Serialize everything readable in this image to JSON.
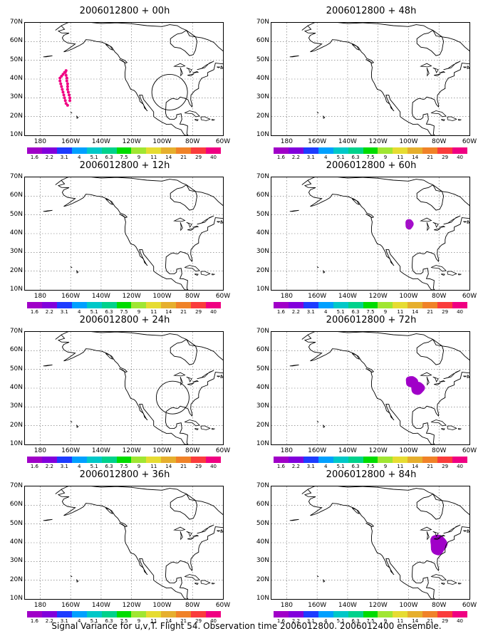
{
  "caption": "Signal Variance for u,v,T. Flight 54. Observation time 2006012800. 2006012400 ensemble.",
  "lat_labels": [
    "70N",
    "60N",
    "50N",
    "40N",
    "30N",
    "20N",
    "10N"
  ],
  "lon_labels": [
    "180",
    "160W",
    "140W",
    "120W",
    "100W",
    "80W",
    "60W"
  ],
  "colorbar": {
    "labels": [
      "1.6",
      "2.2",
      "3.1",
      "4",
      "5.1",
      "6.3",
      "7.5",
      "9",
      "11",
      "14",
      "21",
      "29",
      "40"
    ],
    "colors": [
      "#a000c8",
      "#8200dc",
      "#1e3cff",
      "#00a0ff",
      "#00c8c8",
      "#00d28c",
      "#00dc00",
      "#a0e632",
      "#e6dc32",
      "#e6af2d",
      "#f08228",
      "#fa3c3c",
      "#f00082"
    ]
  },
  "panels": [
    {
      "title": "2006012800 + 00h",
      "feature": "track"
    },
    {
      "title": "2006012800 + 48h",
      "feature": "none"
    },
    {
      "title": "2006012800 + 12h",
      "feature": "none"
    },
    {
      "title": "2006012800 + 60h",
      "feature": "blob60"
    },
    {
      "title": "2006012800 + 24h",
      "feature": "circle"
    },
    {
      "title": "2006012800 + 72h",
      "feature": "blob72"
    },
    {
      "title": "2006012800 + 36h",
      "feature": "none"
    },
    {
      "title": "2006012800 + 84h",
      "feature": "blob84"
    }
  ],
  "map": {
    "lon_min": -190,
    "lon_max": -60,
    "lat_min": 10,
    "lat_max": 70
  }
}
